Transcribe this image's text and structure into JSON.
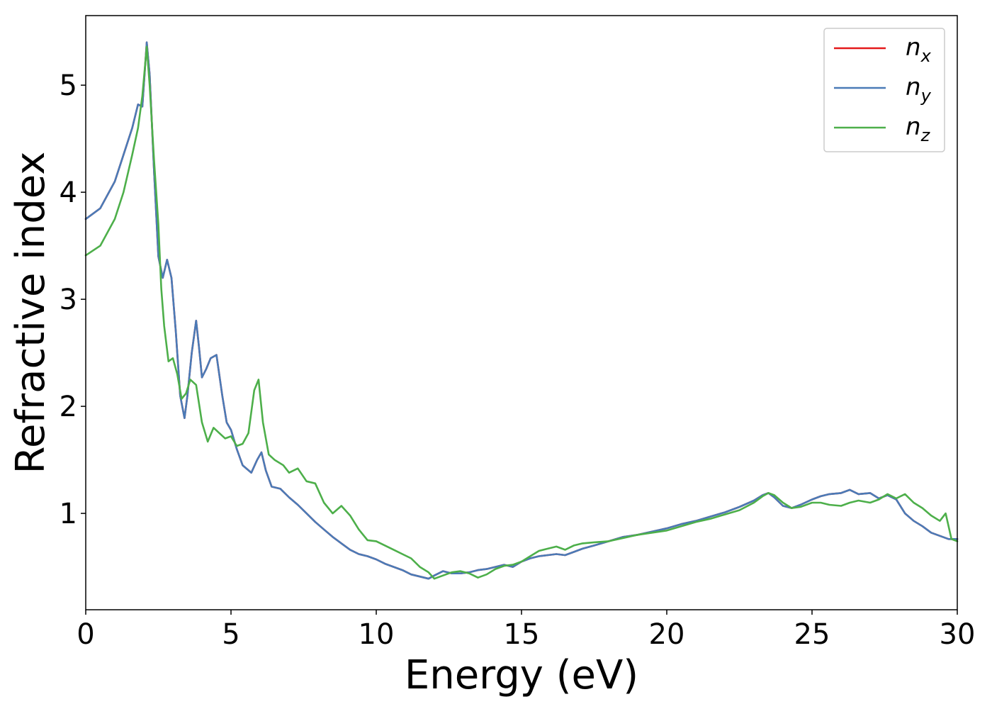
{
  "chart_data": {
    "type": "line",
    "xlabel": "Energy (eV)",
    "ylabel": "Refractive index",
    "xlim": [
      0,
      30
    ],
    "ylim": [
      0.1,
      5.65
    ],
    "xticks": [
      0,
      5,
      10,
      15,
      20,
      25,
      30
    ],
    "yticks": [
      1,
      2,
      3,
      4,
      5
    ],
    "grid": false,
    "legend_position": "top-right",
    "series": [
      {
        "name": "n_x",
        "label_base": "n",
        "label_sub": "x",
        "color": "#e41a1c",
        "x": [
          0,
          0.5,
          1.0,
          1.3,
          1.6,
          1.8,
          1.95,
          2.1,
          2.2,
          2.35,
          2.5,
          2.65,
          2.8,
          2.95,
          3.1,
          3.25,
          3.4,
          3.5,
          3.65,
          3.8,
          3.9,
          4.0,
          4.15,
          4.3,
          4.5,
          4.7,
          4.85,
          5.0,
          5.2,
          5.4,
          5.7,
          5.9,
          6.05,
          6.2,
          6.4,
          6.7,
          7.0,
          7.3,
          7.6,
          7.9,
          8.2,
          8.5,
          8.8,
          9.1,
          9.4,
          9.7,
          10.0,
          10.3,
          10.6,
          10.9,
          11.2,
          11.5,
          11.8,
          12.0,
          12.3,
          12.6,
          12.9,
          13.2,
          13.5,
          13.8,
          14.1,
          14.4,
          14.7,
          15.0,
          15.3,
          15.6,
          15.9,
          16.2,
          16.5,
          16.8,
          17.1,
          17.5,
          18.0,
          18.5,
          19.0,
          19.5,
          20.0,
          20.5,
          21.0,
          21.5,
          22.0,
          22.5,
          23.0,
          23.3,
          23.5,
          23.7,
          24.0,
          24.3,
          24.6,
          25.0,
          25.3,
          25.6,
          26.0,
          26.3,
          26.6,
          27.0,
          27.3,
          27.6,
          27.9,
          28.2,
          28.5,
          28.8,
          29.1,
          29.4,
          29.7,
          30.0
        ],
        "values": [
          3.75,
          3.85,
          4.1,
          4.35,
          4.6,
          4.82,
          4.8,
          5.4,
          5.1,
          4.2,
          3.4,
          3.2,
          3.37,
          3.2,
          2.7,
          2.1,
          1.89,
          2.1,
          2.5,
          2.8,
          2.55,
          2.27,
          2.35,
          2.45,
          2.48,
          2.1,
          1.85,
          1.78,
          1.6,
          1.45,
          1.38,
          1.5,
          1.57,
          1.4,
          1.25,
          1.23,
          1.15,
          1.08,
          1.0,
          0.92,
          0.85,
          0.78,
          0.72,
          0.66,
          0.62,
          0.6,
          0.57,
          0.53,
          0.5,
          0.47,
          0.43,
          0.41,
          0.39,
          0.42,
          0.46,
          0.44,
          0.44,
          0.45,
          0.47,
          0.48,
          0.5,
          0.52,
          0.5,
          0.55,
          0.58,
          0.6,
          0.61,
          0.62,
          0.61,
          0.64,
          0.67,
          0.7,
          0.74,
          0.78,
          0.8,
          0.83,
          0.86,
          0.9,
          0.93,
          0.97,
          1.01,
          1.06,
          1.12,
          1.17,
          1.19,
          1.15,
          1.07,
          1.05,
          1.08,
          1.13,
          1.16,
          1.18,
          1.19,
          1.22,
          1.18,
          1.19,
          1.14,
          1.17,
          1.13,
          1.0,
          0.93,
          0.88,
          0.82,
          0.79,
          0.76,
          0.76
        ]
      },
      {
        "name": "n_y",
        "label_base": "n",
        "label_sub": "y",
        "color": "#4a7bb7",
        "x": [
          0,
          0.5,
          1.0,
          1.3,
          1.6,
          1.8,
          1.95,
          2.1,
          2.2,
          2.35,
          2.5,
          2.65,
          2.8,
          2.95,
          3.1,
          3.25,
          3.4,
          3.5,
          3.65,
          3.8,
          3.9,
          4.0,
          4.15,
          4.3,
          4.5,
          4.7,
          4.85,
          5.0,
          5.2,
          5.4,
          5.7,
          5.9,
          6.05,
          6.2,
          6.4,
          6.7,
          7.0,
          7.3,
          7.6,
          7.9,
          8.2,
          8.5,
          8.8,
          9.1,
          9.4,
          9.7,
          10.0,
          10.3,
          10.6,
          10.9,
          11.2,
          11.5,
          11.8,
          12.0,
          12.3,
          12.6,
          12.9,
          13.2,
          13.5,
          13.8,
          14.1,
          14.4,
          14.7,
          15.0,
          15.3,
          15.6,
          15.9,
          16.2,
          16.5,
          16.8,
          17.1,
          17.5,
          18.0,
          18.5,
          19.0,
          19.5,
          20.0,
          20.5,
          21.0,
          21.5,
          22.0,
          22.5,
          23.0,
          23.3,
          23.5,
          23.7,
          24.0,
          24.3,
          24.6,
          25.0,
          25.3,
          25.6,
          26.0,
          26.3,
          26.6,
          27.0,
          27.3,
          27.6,
          27.9,
          28.2,
          28.5,
          28.8,
          29.1,
          29.4,
          29.7,
          30.0
        ],
        "values": [
          3.75,
          3.85,
          4.1,
          4.35,
          4.6,
          4.82,
          4.8,
          5.4,
          5.1,
          4.2,
          3.4,
          3.2,
          3.37,
          3.2,
          2.7,
          2.1,
          1.89,
          2.1,
          2.5,
          2.8,
          2.55,
          2.27,
          2.35,
          2.45,
          2.48,
          2.1,
          1.85,
          1.78,
          1.6,
          1.45,
          1.38,
          1.5,
          1.57,
          1.4,
          1.25,
          1.23,
          1.15,
          1.08,
          1.0,
          0.92,
          0.85,
          0.78,
          0.72,
          0.66,
          0.62,
          0.6,
          0.57,
          0.53,
          0.5,
          0.47,
          0.43,
          0.41,
          0.39,
          0.42,
          0.46,
          0.44,
          0.44,
          0.45,
          0.47,
          0.48,
          0.5,
          0.52,
          0.5,
          0.55,
          0.58,
          0.6,
          0.61,
          0.62,
          0.61,
          0.64,
          0.67,
          0.7,
          0.74,
          0.78,
          0.8,
          0.83,
          0.86,
          0.9,
          0.93,
          0.97,
          1.01,
          1.06,
          1.12,
          1.17,
          1.19,
          1.15,
          1.07,
          1.05,
          1.08,
          1.13,
          1.16,
          1.18,
          1.19,
          1.22,
          1.18,
          1.19,
          1.14,
          1.17,
          1.13,
          1.0,
          0.93,
          0.88,
          0.82,
          0.79,
          0.76,
          0.76
        ]
      },
      {
        "name": "n_z",
        "label_base": "n",
        "label_sub": "z",
        "color": "#4daf4a",
        "x": [
          0,
          0.5,
          1.0,
          1.3,
          1.6,
          1.8,
          1.95,
          2.1,
          2.2,
          2.35,
          2.5,
          2.6,
          2.7,
          2.85,
          3.0,
          3.15,
          3.3,
          3.45,
          3.6,
          3.8,
          4.0,
          4.2,
          4.4,
          4.6,
          4.8,
          5.0,
          5.2,
          5.4,
          5.6,
          5.8,
          5.95,
          6.1,
          6.3,
          6.5,
          6.8,
          7.0,
          7.3,
          7.6,
          7.9,
          8.2,
          8.5,
          8.8,
          9.1,
          9.4,
          9.7,
          10.0,
          10.3,
          10.6,
          10.9,
          11.2,
          11.5,
          11.8,
          12.0,
          12.3,
          12.6,
          12.9,
          13.2,
          13.5,
          13.8,
          14.1,
          14.4,
          14.7,
          15.0,
          15.3,
          15.6,
          15.9,
          16.2,
          16.5,
          16.8,
          17.1,
          17.5,
          18.0,
          18.5,
          19.0,
          19.5,
          20.0,
          20.5,
          21.0,
          21.5,
          22.0,
          22.5,
          23.0,
          23.3,
          23.5,
          23.7,
          24.0,
          24.3,
          24.6,
          25.0,
          25.3,
          25.6,
          26.0,
          26.3,
          26.6,
          27.0,
          27.3,
          27.6,
          27.9,
          28.2,
          28.5,
          28.8,
          29.1,
          29.4,
          29.6,
          29.8,
          30.0
        ],
        "values": [
          3.41,
          3.5,
          3.75,
          4.0,
          4.35,
          4.6,
          4.9,
          5.36,
          5.0,
          4.3,
          3.7,
          3.1,
          2.75,
          2.42,
          2.45,
          2.3,
          2.07,
          2.12,
          2.25,
          2.2,
          1.85,
          1.67,
          1.8,
          1.75,
          1.7,
          1.72,
          1.63,
          1.65,
          1.75,
          2.15,
          2.25,
          1.85,
          1.55,
          1.5,
          1.45,
          1.38,
          1.42,
          1.3,
          1.28,
          1.1,
          1.0,
          1.07,
          0.98,
          0.85,
          0.75,
          0.74,
          0.7,
          0.66,
          0.62,
          0.58,
          0.5,
          0.45,
          0.39,
          0.42,
          0.45,
          0.46,
          0.44,
          0.4,
          0.43,
          0.48,
          0.51,
          0.52,
          0.55,
          0.6,
          0.65,
          0.67,
          0.69,
          0.66,
          0.7,
          0.72,
          0.73,
          0.74,
          0.77,
          0.8,
          0.82,
          0.84,
          0.88,
          0.92,
          0.95,
          0.99,
          1.03,
          1.1,
          1.16,
          1.19,
          1.17,
          1.1,
          1.05,
          1.06,
          1.1,
          1.1,
          1.08,
          1.07,
          1.1,
          1.12,
          1.1,
          1.13,
          1.18,
          1.14,
          1.18,
          1.1,
          1.05,
          0.98,
          0.93,
          1.0,
          0.76,
          0.74
        ]
      }
    ]
  }
}
